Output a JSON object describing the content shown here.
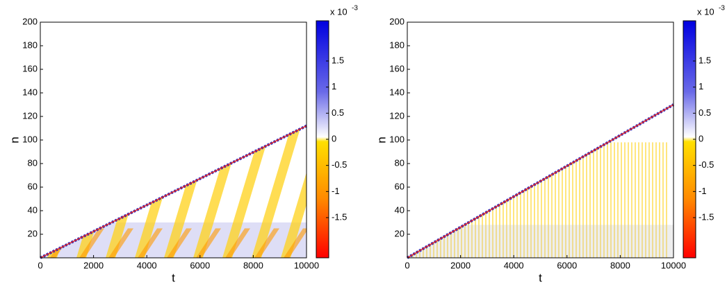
{
  "chart_data": [
    {
      "type": "heatmap",
      "xlabel": "t",
      "ylabel": "n",
      "xlim": [
        0,
        10000
      ],
      "ylim": [
        0,
        200
      ],
      "xticks": [
        0,
        2000,
        4000,
        6000,
        8000,
        10000
      ],
      "yticks": [
        20,
        40,
        60,
        80,
        100,
        120,
        140,
        160,
        180,
        200
      ],
      "front": {
        "t": [
          0,
          10000
        ],
        "n": [
          0,
          112
        ]
      },
      "pattern": "diagonal",
      "clim": [
        -2.27,
        2.27
      ],
      "cticks": [
        -1.5,
        -1,
        -0.5,
        0,
        0.5,
        1,
        1.5
      ],
      "colorbar_multiplier": "x 10",
      "colorbar_exponent": "-3"
    },
    {
      "type": "heatmap",
      "xlabel": "t",
      "ylabel": "n",
      "xlim": [
        0,
        10000
      ],
      "ylim": [
        0,
        200
      ],
      "xticks": [
        0,
        2000,
        4000,
        6000,
        8000,
        10000
      ],
      "yticks": [
        20,
        40,
        60,
        80,
        100,
        120,
        140,
        160,
        180,
        200
      ],
      "front": {
        "t": [
          0,
          10000
        ],
        "n": [
          0,
          130
        ]
      },
      "pattern": "vertical",
      "clim": [
        -2.27,
        2.27
      ],
      "cticks": [
        -1.5,
        -1,
        -0.5,
        0,
        0.5,
        1,
        1.5
      ],
      "colorbar_multiplier": "x 10",
      "colorbar_exponent": "-3"
    }
  ]
}
